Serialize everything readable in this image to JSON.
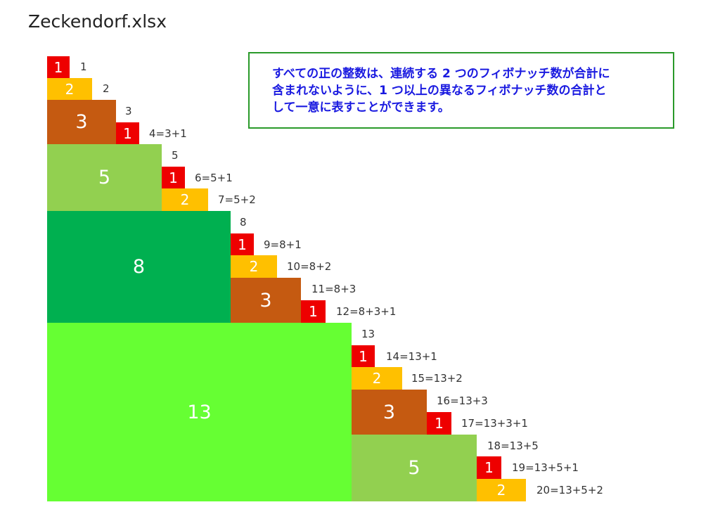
{
  "title": "Zeckendorf.xlsx",
  "note_lines": [
    "すべての正の整数は、連続する 2 つのフィボナッチ数が合計に",
    "含まれないように、1 つ以上の異なるフィボナッチ数の合計と",
    "して一意に表すことができます。"
  ],
  "colors": {
    "1": "#ee0000",
    "2": "#ffc000",
    "3": "#c55a11",
    "5": "#92d050",
    "8": "#00b050",
    "13": "#66ff33"
  },
  "blocks": [
    "1",
    "2",
    "3",
    "1",
    "5",
    "1",
    "2",
    "8",
    "1",
    "2",
    "3",
    "1",
    "13",
    "1",
    "2",
    "3",
    "1",
    "5",
    "1",
    "2"
  ],
  "labels": [
    "1",
    "2",
    "3",
    "4=3+1",
    "5",
    "6=5+1",
    "7=5+2",
    "8",
    "9=8+1",
    "10=8+2",
    "11=8+3",
    "12=8+3+1",
    "13",
    "14=13+1",
    "15=13+2",
    "16=13+3",
    "17=13+3+1",
    "18=13+5",
    "19=13+5+1",
    "20=13+5+2"
  ]
}
